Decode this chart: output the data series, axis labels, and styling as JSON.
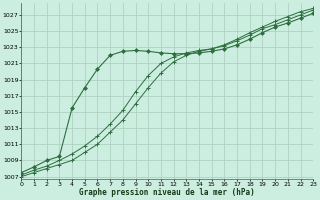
{
  "title": "Graphe pression niveau de la mer (hPa)",
  "xlim": [
    0,
    23
  ],
  "ylim": [
    1007,
    1028
  ],
  "yticks": [
    1007,
    1009,
    1011,
    1013,
    1015,
    1017,
    1019,
    1021,
    1023,
    1025,
    1027
  ],
  "xticks": [
    0,
    1,
    2,
    3,
    4,
    5,
    6,
    7,
    8,
    9,
    10,
    11,
    12,
    13,
    14,
    15,
    16,
    17,
    18,
    19,
    20,
    21,
    22,
    23
  ],
  "bg_color": "#cceee0",
  "grid_color": "#aaccbb",
  "line_color": "#2d6e3e",
  "line1_x": [
    0,
    1,
    2,
    3,
    4,
    5,
    6,
    7,
    8,
    9,
    10,
    11,
    12,
    13,
    14,
    15,
    16,
    17,
    18,
    19,
    20,
    21,
    22,
    23
  ],
  "line1_y": [
    1007.2,
    1007.8,
    1008.3,
    1009.0,
    1009.8,
    1010.8,
    1012.0,
    1013.5,
    1015.2,
    1017.5,
    1019.5,
    1021.0,
    1021.8,
    1022.3,
    1022.6,
    1022.8,
    1023.2,
    1023.8,
    1024.5,
    1025.3,
    1025.8,
    1026.4,
    1027.0,
    1027.6
  ],
  "line2_x": [
    0,
    1,
    2,
    3,
    4,
    5,
    6,
    7,
    8,
    9,
    10,
    11,
    12,
    13,
    14,
    15,
    16,
    17,
    18,
    19,
    20,
    21,
    22,
    23
  ],
  "line2_y": [
    1007.0,
    1007.5,
    1008.0,
    1008.5,
    1009.0,
    1010.0,
    1011.0,
    1012.5,
    1014.0,
    1016.0,
    1018.0,
    1019.8,
    1021.2,
    1022.0,
    1022.5,
    1022.8,
    1023.3,
    1024.0,
    1024.8,
    1025.5,
    1026.2,
    1026.8,
    1027.4,
    1027.8
  ],
  "line3_x": [
    0,
    1,
    2,
    3,
    4,
    5,
    6,
    7,
    8,
    9,
    10,
    11,
    12,
    13,
    14,
    15,
    16,
    17,
    18,
    19,
    20,
    21,
    22,
    23
  ],
  "line3_y": [
    1007.5,
    1008.2,
    1009.0,
    1009.5,
    1015.5,
    1018.0,
    1020.3,
    1022.0,
    1022.5,
    1022.6,
    1022.5,
    1022.3,
    1022.2,
    1022.2,
    1022.3,
    1022.5,
    1022.8,
    1023.3,
    1024.0,
    1024.8,
    1025.5,
    1026.0,
    1026.6,
    1027.2
  ]
}
